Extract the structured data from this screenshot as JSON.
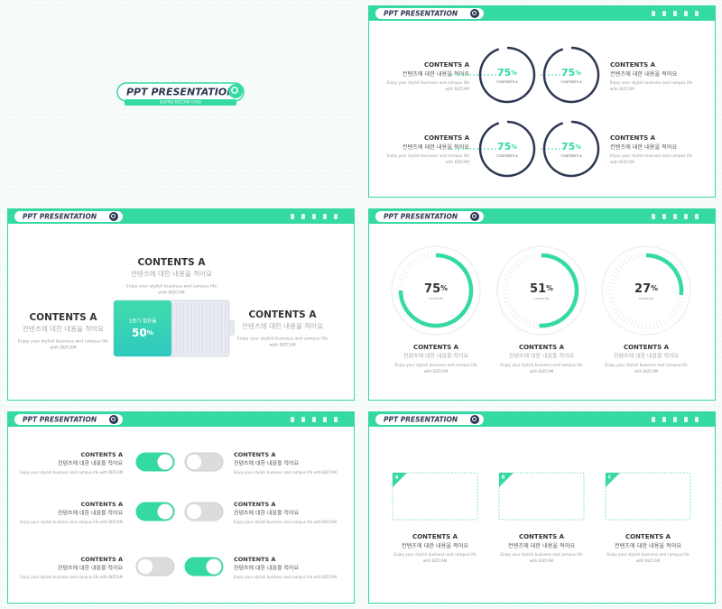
{
  "cover": {
    "title": "PPT PRESENTATION",
    "subtitle": "감성적인 BIZCAM 디자인"
  },
  "slides": [
    {
      "header": "PPT PRESENTATION",
      "unit": "%",
      "blocks": [
        {
          "title": "CONTENTS A",
          "subtitle": "컨텐츠에 대한 내용을 적어요",
          "body": [
            "Enjoy your stylish business and campus life",
            "with BIZCAM"
          ]
        },
        {
          "title": "CONTENTS A",
          "subtitle": "컨텐츠에 대한 내용을 적어요",
          "body": [
            "Enjoy your stylish business and campus life",
            "with BIZCAM"
          ]
        },
        {
          "title": "CONTENTS A",
          "subtitle": "컨텐츠에 대한 내용을 적어요",
          "body": [
            "Enjoy your stylish business and campus life",
            "with BIZCAM"
          ]
        },
        {
          "title": "CONTENTS A",
          "subtitle": "컨텐츠에 대한 내용을 적어요",
          "body": [
            "Enjoy your stylish business and campus life",
            "with BIZCAM"
          ]
        }
      ],
      "rings": [
        {
          "value": 75,
          "label": "CONTENTS A"
        },
        {
          "value": 75,
          "label": "CONTENTS A"
        },
        {
          "value": 75,
          "label": "CONTENTS A"
        },
        {
          "value": 75,
          "label": "CONTENTS A"
        }
      ]
    },
    {
      "header": "PPT PRESENTATION",
      "unit": "%",
      "blocks": [
        {
          "title": "CONTENTS A",
          "subtitle": "컨텐츠에 대한 내용을 적어요",
          "body": [
            "Enjoy your stylish business and campus life",
            "with BIZCAM"
          ]
        },
        {
          "title": "CONTENTS A",
          "subtitle": "컨텐츠에 대한 내용을 적어요",
          "body": [
            "Enjoy your stylish business and campus life",
            "with BIZCAM"
          ]
        },
        {
          "title": "CONTENTS A",
          "subtitle": "컨텐츠에 대한 내용을 적어요",
          "body": [
            "Enjoy your stylish business and campus life",
            "with BIZCAM"
          ]
        }
      ],
      "battery": {
        "label": "1분기 점유율",
        "value": 50
      }
    },
    {
      "header": "PPT PRESENTATION",
      "unit": "%",
      "gauges": [
        {
          "value": 75,
          "label": "contents"
        },
        {
          "value": 51,
          "label": "contents"
        },
        {
          "value": 27,
          "label": "contents"
        }
      ],
      "blocks": [
        {
          "title": "CONTENTS A",
          "subtitle": "컨텐츠에 대한 내용을 적어요",
          "body": [
            "Enjoy your stylish business and campus life",
            "with BIZCAM"
          ]
        },
        {
          "title": "CONTENTS A",
          "subtitle": "컨텐츠에 대한 내용을 적어요",
          "body": [
            "Enjoy your stylish business and campus life",
            "with BIZCAM"
          ]
        },
        {
          "title": "CONTENTS A",
          "subtitle": "컨텐츠에 대한 내용을 적어요",
          "body": [
            "Enjoy your stylish business and campus life",
            "with BIZCAM"
          ]
        }
      ]
    },
    {
      "header": "PPT PRESENTATION",
      "rows": [
        {
          "left": {
            "title": "CONTENTS A",
            "subtitle": "컨텐츠에 대한 내용을 적어요",
            "body": [
              "Enjoy your stylish business and campus life with BIZCAM"
            ]
          },
          "left_on": true,
          "right_on": false,
          "right": {
            "title": "CONTENTS A",
            "subtitle": "컨텐츠에 대한 내용을 적어요",
            "body": [
              "Enjoy your stylish business and campus life with BIZCAM"
            ]
          }
        },
        {
          "left": {
            "title": "CONTENTS A",
            "subtitle": "컨텐츠에 대한 내용을 적어요",
            "body": [
              "Enjoy your stylish business and campus life with BIZCAM"
            ]
          },
          "left_on": true,
          "right_on": false,
          "right": {
            "title": "CONTENTS A",
            "subtitle": "컨텐츠에 대한 내용을 적어요",
            "body": [
              "Enjoy your stylish business and campus life with BIZCAM"
            ]
          }
        },
        {
          "left": {
            "title": "CONTENTS A",
            "subtitle": "컨텐츠에 대한 내용을 적어요",
            "body": [
              "Enjoy your stylish business and campus life with BIZCAM"
            ]
          },
          "left_on": false,
          "right_on": true,
          "right": {
            "title": "CONTENTS A",
            "subtitle": "컨텐츠에 대한 내용을 적어요",
            "body": [
              "Enjoy your stylish business and campus life with BIZCAM"
            ]
          }
        }
      ]
    },
    {
      "header": "PPT PRESENTATION",
      "cards": [
        {
          "tag": "A",
          "title": "CONTENTS A",
          "subtitle": "컨텐츠에 대한 내용을 적어요",
          "body": [
            "Enjoy your stylish business and campus life",
            "with BIZCAM"
          ]
        },
        {
          "tag": "B",
          "title": "CONTENTS A",
          "subtitle": "컨텐츠에 대한 내용을 적어요",
          "body": [
            "Enjoy your stylish business and campus life",
            "with BIZCAM"
          ]
        },
        {
          "tag": "C",
          "title": "CONTENTS A",
          "subtitle": "컨텐츠에 대한 내용을 적어요",
          "body": [
            "Enjoy your stylish business and campus life",
            "with BIZCAM"
          ]
        }
      ]
    }
  ]
}
